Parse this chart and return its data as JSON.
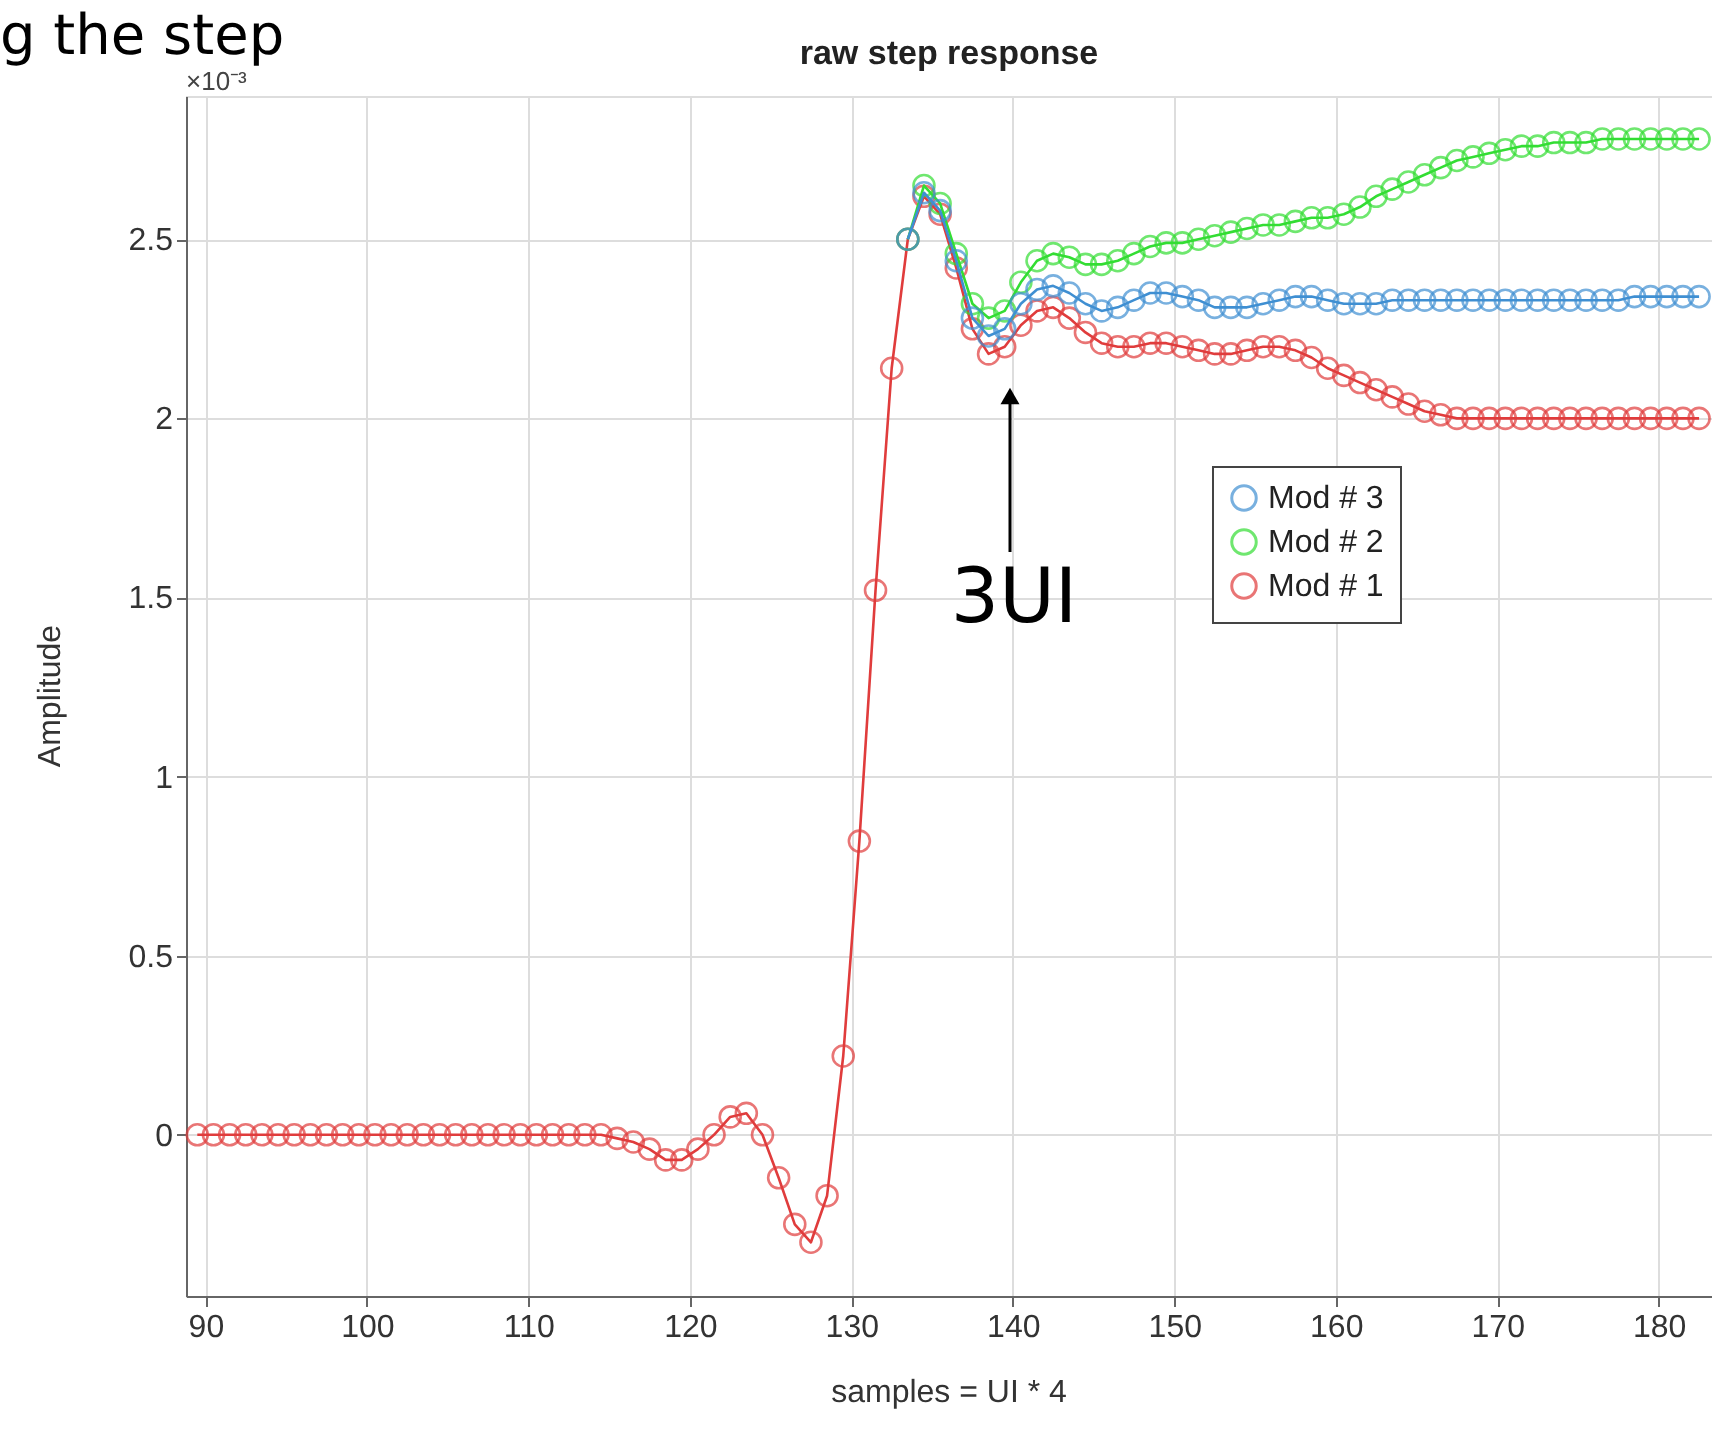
{
  "chart_data": {
    "type": "line",
    "title": "raw step response",
    "xlabel": "samples = UI * 4",
    "ylabel": "Amplitude",
    "x": [
      89.5,
      90.5,
      91.5,
      92.5,
      93.5,
      94.5,
      95.5,
      96.5,
      97.5,
      98.5,
      99.5,
      100.5,
      101.5,
      102.5,
      103.5,
      104.5,
      105.5,
      106.5,
      107.5,
      108.5,
      109.5,
      110.5,
      111.5,
      112.5,
      113.5,
      114.5,
      115.5,
      116.5,
      117.5,
      118.5,
      119.5,
      120.5,
      121.5,
      122.5,
      123.5,
      124.5,
      125.5,
      126.5,
      127.5,
      128.5,
      129.5,
      130.5,
      131.5,
      132.5,
      133.5,
      134.5,
      135.5,
      136.5,
      137.5,
      138.5,
      139.5,
      140.5,
      141.5,
      142.5,
      143.5,
      144.5,
      145.5,
      146.5,
      147.5,
      148.5,
      149.5,
      150.5,
      151.5,
      152.5,
      153.5,
      154.5,
      155.5,
      156.5,
      157.5,
      158.5,
      159.5,
      160.5,
      161.5,
      162.5,
      163.5,
      164.5,
      165.5,
      166.5,
      167.5,
      168.5,
      169.5,
      170.5,
      171.5,
      172.5,
      173.5,
      174.5,
      175.5,
      176.5,
      177.5,
      178.5,
      179.5,
      180.5,
      181.5,
      182.5
    ],
    "series": [
      {
        "name": "Mod # 3",
        "color": "#3f8fd2",
        "values": [
          null,
          null,
          null,
          null,
          null,
          null,
          null,
          null,
          null,
          null,
          null,
          null,
          null,
          null,
          null,
          null,
          null,
          null,
          null,
          null,
          null,
          null,
          null,
          null,
          null,
          null,
          null,
          null,
          null,
          null,
          null,
          null,
          null,
          null,
          null,
          null,
          null,
          null,
          null,
          null,
          null,
          null,
          null,
          null,
          2.5,
          2.63,
          2.58,
          2.44,
          2.28,
          2.23,
          2.25,
          2.32,
          2.36,
          2.37,
          2.35,
          2.32,
          2.3,
          2.31,
          2.33,
          2.35,
          2.35,
          2.34,
          2.33,
          2.31,
          2.31,
          2.31,
          2.32,
          2.33,
          2.34,
          2.34,
          2.33,
          2.32,
          2.32,
          2.32,
          2.33,
          2.33,
          2.33,
          2.33,
          2.33,
          2.33,
          2.33,
          2.33,
          2.33,
          2.33,
          2.33,
          2.33,
          2.33,
          2.33,
          2.33,
          2.34,
          2.34,
          2.34,
          2.34,
          2.34
        ]
      },
      {
        "name": "Mod # 2",
        "color": "#33dd33",
        "values": [
          null,
          null,
          null,
          null,
          null,
          null,
          null,
          null,
          null,
          null,
          null,
          null,
          null,
          null,
          null,
          null,
          null,
          null,
          null,
          null,
          null,
          null,
          null,
          null,
          null,
          null,
          null,
          null,
          null,
          null,
          null,
          null,
          null,
          null,
          null,
          null,
          null,
          null,
          null,
          null,
          null,
          null,
          null,
          null,
          2.5,
          2.65,
          2.6,
          2.46,
          2.32,
          2.28,
          2.3,
          2.38,
          2.44,
          2.46,
          2.45,
          2.43,
          2.43,
          2.44,
          2.46,
          2.48,
          2.49,
          2.49,
          2.5,
          2.51,
          2.52,
          2.53,
          2.54,
          2.54,
          2.55,
          2.56,
          2.56,
          2.57,
          2.59,
          2.62,
          2.64,
          2.66,
          2.68,
          2.7,
          2.72,
          2.73,
          2.74,
          2.75,
          2.76,
          2.76,
          2.77,
          2.77,
          2.77,
          2.78,
          2.78,
          2.78,
          2.78,
          2.78,
          2.78,
          2.78
        ]
      },
      {
        "name": "Mod # 1",
        "color": "#e03c3c",
        "values": [
          0,
          0,
          0,
          0,
          0,
          0,
          0,
          0,
          0,
          0,
          0,
          0,
          0,
          0,
          0,
          0,
          0,
          0,
          0,
          0,
          0,
          0,
          0,
          0,
          0,
          0,
          -0.01,
          -0.02,
          -0.04,
          -0.07,
          -0.07,
          -0.04,
          0.0,
          0.05,
          0.06,
          0.0,
          -0.12,
          -0.25,
          -0.3,
          -0.17,
          0.22,
          0.82,
          1.52,
          2.14,
          2.5,
          2.62,
          2.57,
          2.42,
          2.25,
          2.18,
          2.2,
          2.26,
          2.3,
          2.31,
          2.28,
          2.24,
          2.21,
          2.2,
          2.2,
          2.21,
          2.21,
          2.2,
          2.19,
          2.18,
          2.18,
          2.19,
          2.2,
          2.2,
          2.19,
          2.17,
          2.14,
          2.12,
          2.1,
          2.08,
          2.06,
          2.04,
          2.02,
          2.01,
          2.0,
          2.0,
          2.0,
          2.0,
          2.0,
          2.0,
          2.0,
          2.0,
          2.0,
          2.0,
          2.0,
          2.0,
          2.0,
          2.0,
          2.0,
          2.0
        ]
      }
    ],
    "xlim": [
      88.8,
      183.3
    ],
    "xticks": [
      90,
      100,
      110,
      120,
      130,
      140,
      150,
      160,
      170,
      180
    ],
    "ylim": [
      -0.45,
      2.9
    ],
    "yticks": [
      0,
      0.5,
      1,
      1.5,
      2,
      2.5
    ],
    "annotations": [
      "g the step",
      "×10⁻³",
      "3UI"
    ],
    "grid": true,
    "legend": "right",
    "marker": "circle",
    "line_style": "solid"
  }
}
